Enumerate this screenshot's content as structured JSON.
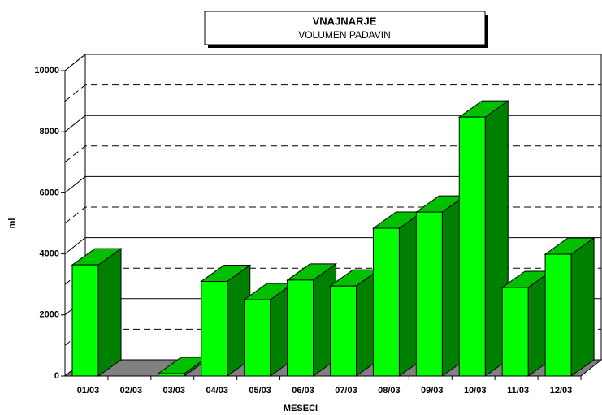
{
  "chart_data": {
    "type": "bar3d",
    "title": "VNAJNARJE",
    "subtitle": "VOLUMEN PADAVIN",
    "x_label": "MESECI",
    "y_label": "ml",
    "categories": [
      "01/03",
      "02/03",
      "03/03",
      "04/03",
      "05/03",
      "06/03",
      "07/03",
      "08/03",
      "09/03",
      "10/03",
      "11/03",
      "12/03"
    ],
    "values": [
      3640,
      0,
      80,
      3100,
      2500,
      3140,
      2950,
      4840,
      5370,
      8480,
      2900,
      3990
    ],
    "color": "#00ff00",
    "ylim": [
      0,
      10000
    ],
    "yticks": [
      0,
      2000,
      4000,
      6000,
      8000,
      10000
    ],
    "minor_yticks": [
      1000,
      3000,
      5000,
      7000,
      9000
    ],
    "grid": true
  }
}
